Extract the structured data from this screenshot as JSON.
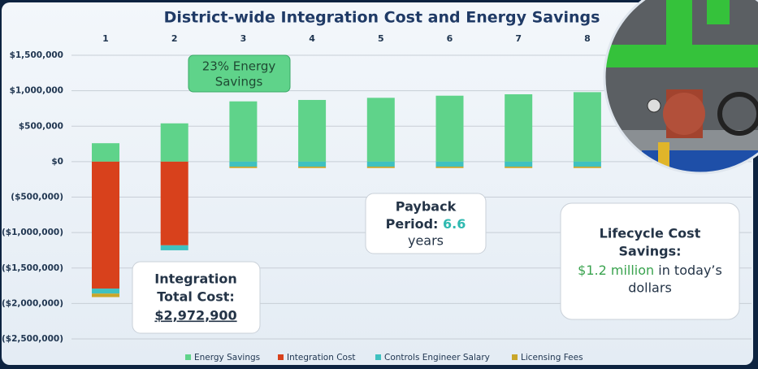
{
  "chart_data": {
    "type": "bar",
    "stacked": true,
    "title": "District-wide Integration Cost and Energy Savings",
    "categories": [
      "1",
      "2",
      "3",
      "4",
      "5",
      "6",
      "7",
      "8"
    ],
    "series": [
      {
        "name": "Energy Savings",
        "color": "#5fd38a",
        "values": [
          260000,
          540000,
          850000,
          870000,
          900000,
          930000,
          950000,
          980000
        ]
      },
      {
        "name": "Integration Cost",
        "color": "#d8411c",
        "values": [
          -1790000,
          -1180000,
          0,
          0,
          0,
          0,
          0,
          0
        ]
      },
      {
        "name": "Controls Engineer Salary",
        "color": "#3fc1c0",
        "values": [
          -70000,
          -70000,
          -70000,
          -70000,
          -70000,
          -70000,
          -70000,
          -70000
        ]
      },
      {
        "name": "Licensing Fees",
        "color": "#c9a62a",
        "values": [
          -50000,
          0,
          -20000,
          -20000,
          -20000,
          -20000,
          -20000,
          -20000
        ]
      }
    ],
    "ylim": [
      -2500000,
      1500000
    ],
    "yticks": [
      {
        "value": 1500000,
        "label": "$1,500,000"
      },
      {
        "value": 1000000,
        "label": "$1,000,000"
      },
      {
        "value": 500000,
        "label": "$500,000"
      },
      {
        "value": 0,
        "label": "$0"
      },
      {
        "value": -500000,
        "label": "($500,000)"
      },
      {
        "value": -1000000,
        "label": "($1,000,000)"
      },
      {
        "value": -1500000,
        "label": "($1,500,000)"
      },
      {
        "value": -2000000,
        "label": "($2,000,000)"
      },
      {
        "value": -2500000,
        "label": "($2,500,000)"
      }
    ],
    "grid": true,
    "legend": "bottom",
    "annotations": {
      "energy": {
        "lines": [
          "23% Energy",
          "Savings"
        ]
      },
      "payback": {
        "line1": "Payback",
        "line2a": "Period:",
        "line2b": "6.6",
        "line3": "years"
      },
      "integration": {
        "lines": [
          "Integration",
          "Total Cost:"
        ],
        "value": "$2,972,900"
      },
      "lifecycle": {
        "line1": "Lifecycle Cost",
        "line2": "Savings:",
        "line3a": "$1.2 million",
        "line3b": "in today’s",
        "line4": "dollars"
      }
    }
  }
}
